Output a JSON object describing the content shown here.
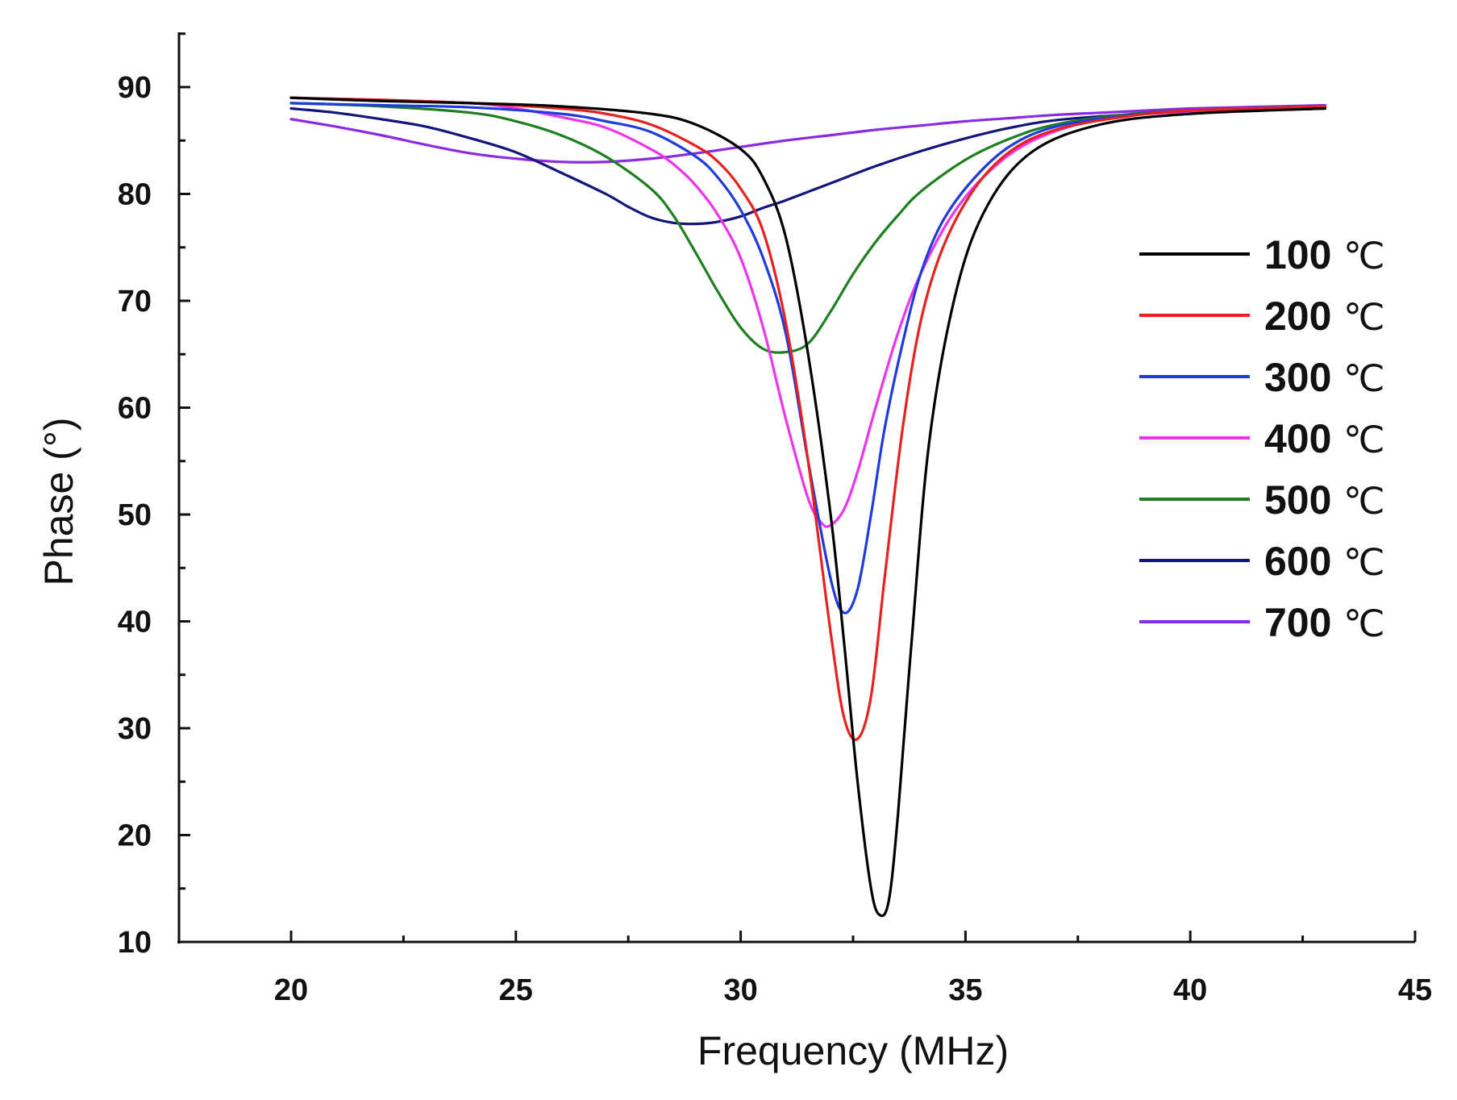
{
  "chart_data": {
    "type": "line",
    "title": "",
    "xlabel": "Frequency (MHz)",
    "ylabel": "Phase (°)",
    "xlim": [
      17.5,
      45
    ],
    "ylim": [
      10,
      95
    ],
    "x_ticks": [
      20,
      25,
      30,
      35,
      40,
      45
    ],
    "y_ticks": [
      10,
      20,
      30,
      40,
      50,
      60,
      70,
      80,
      90
    ],
    "legend_position": "right",
    "grid": false,
    "series": [
      {
        "name": "100",
        "unit": "℃",
        "color": "#000000",
        "x": [
          20,
          22,
          24,
          26,
          28,
          29,
          30,
          30.5,
          31,
          31.5,
          32,
          32.3,
          32.6,
          32.9,
          33.1,
          33.3,
          33.5,
          33.8,
          34.2,
          34.8,
          35.5,
          36.5,
          38,
          40,
          43
        ],
        "y": [
          89,
          88.7,
          88.5,
          88.2,
          87.5,
          86.5,
          84.2,
          81.5,
          76,
          65,
          50,
          38,
          25,
          15,
          12.5,
          14,
          22,
          38,
          57,
          71,
          79,
          84,
          86.5,
          87.5,
          88
        ]
      },
      {
        "name": "200",
        "unit": "℃",
        "color": "#e8201e",
        "x": [
          20,
          22,
          24,
          26,
          27,
          28,
          29,
          29.5,
          30,
          30.5,
          31,
          31.5,
          32,
          32.3,
          32.6,
          32.9,
          33.2,
          33.6,
          34,
          34.5,
          35.2,
          36,
          37,
          38.5,
          40,
          43
        ],
        "y": [
          89,
          88.8,
          88.5,
          88,
          87.5,
          86.5,
          84.5,
          83,
          80.5,
          76.5,
          68,
          55,
          39,
          31,
          29,
          33,
          44,
          58,
          68,
          75,
          80.5,
          84,
          86,
          87.2,
          87.8,
          88.2
        ]
      },
      {
        "name": "300",
        "unit": "℃",
        "color": "#1f3bdc",
        "x": [
          20,
          22,
          24,
          26,
          27,
          28,
          29,
          29.5,
          30,
          30.5,
          31,
          31.5,
          32,
          32.3,
          32.6,
          32.9,
          33.2,
          33.6,
          34,
          34.5,
          35.2,
          36,
          37,
          38.5,
          40,
          43
        ],
        "y": [
          88.5,
          88.3,
          88.1,
          87.5,
          86.8,
          85.8,
          83.5,
          81.5,
          78.5,
          74,
          67,
          55,
          44,
          40.8,
          43,
          50,
          58,
          66,
          72.5,
          77.5,
          81.5,
          84.5,
          86.3,
          87.3,
          87.8,
          88.2
        ]
      },
      {
        "name": "400",
        "unit": "℃",
        "color": "#ee33ee",
        "x": [
          20,
          22,
          24,
          25,
          26,
          27,
          28,
          28.5,
          29,
          29.5,
          30,
          30.5,
          31,
          31.5,
          31.8,
          32,
          32.3,
          32.6,
          33,
          33.5,
          34,
          34.7,
          35.5,
          36.5,
          38,
          40,
          43
        ],
        "y": [
          89,
          88.8,
          88.5,
          88,
          87.2,
          86.2,
          84.2,
          82.8,
          80.8,
          78,
          74,
          67.5,
          59,
          51.5,
          49.2,
          49,
          50.5,
          54,
          60,
          67,
          72.5,
          78,
          82,
          85,
          87,
          87.7,
          88.2
        ]
      },
      {
        "name": "500",
        "unit": "℃",
        "color": "#1f7f1f",
        "x": [
          20,
          22,
          24,
          25,
          26,
          27,
          28,
          28.5,
          29,
          29.5,
          30,
          30.5,
          31,
          31.5,
          32,
          32.5,
          33,
          33.5,
          34,
          35,
          36,
          37,
          38.5,
          40,
          43
        ],
        "y": [
          88.5,
          88.2,
          87.6,
          86.8,
          85.5,
          83.5,
          80.5,
          78,
          74.5,
          70.8,
          67.5,
          65.5,
          65.2,
          66,
          69,
          72.5,
          75.5,
          78,
          80.2,
          83.2,
          85.2,
          86.5,
          87.4,
          87.8,
          88.2
        ]
      },
      {
        "name": "600",
        "unit": "℃",
        "color": "#14157a",
        "x": [
          20,
          21,
          22,
          23,
          24,
          25,
          26,
          27,
          27.5,
          28,
          28.5,
          29,
          29.5,
          30,
          30.5,
          31,
          32,
          33,
          34,
          35,
          36,
          37,
          38.5,
          40,
          43
        ],
        "y": [
          88,
          87.6,
          87,
          86.3,
          85.2,
          83.9,
          82,
          80,
          78.8,
          77.8,
          77.3,
          77.2,
          77.4,
          77.9,
          78.7,
          79.4,
          81,
          82.6,
          84,
          85.2,
          86.2,
          86.9,
          87.4,
          87.7,
          88
        ]
      },
      {
        "name": "700",
        "unit": "℃",
        "color": "#8a2be2",
        "x": [
          20,
          21,
          22,
          23,
          24,
          25,
          26,
          27,
          28,
          29,
          30,
          31,
          32,
          33,
          34,
          35,
          36,
          37,
          38,
          39,
          40,
          41,
          42,
          43
        ],
        "y": [
          87,
          86.3,
          85.5,
          84.6,
          83.8,
          83.3,
          83,
          83,
          83.3,
          83.8,
          84.4,
          85,
          85.5,
          86,
          86.4,
          86.8,
          87.1,
          87.4,
          87.6,
          87.8,
          88,
          88.1,
          88.2,
          88.3
        ]
      }
    ]
  }
}
